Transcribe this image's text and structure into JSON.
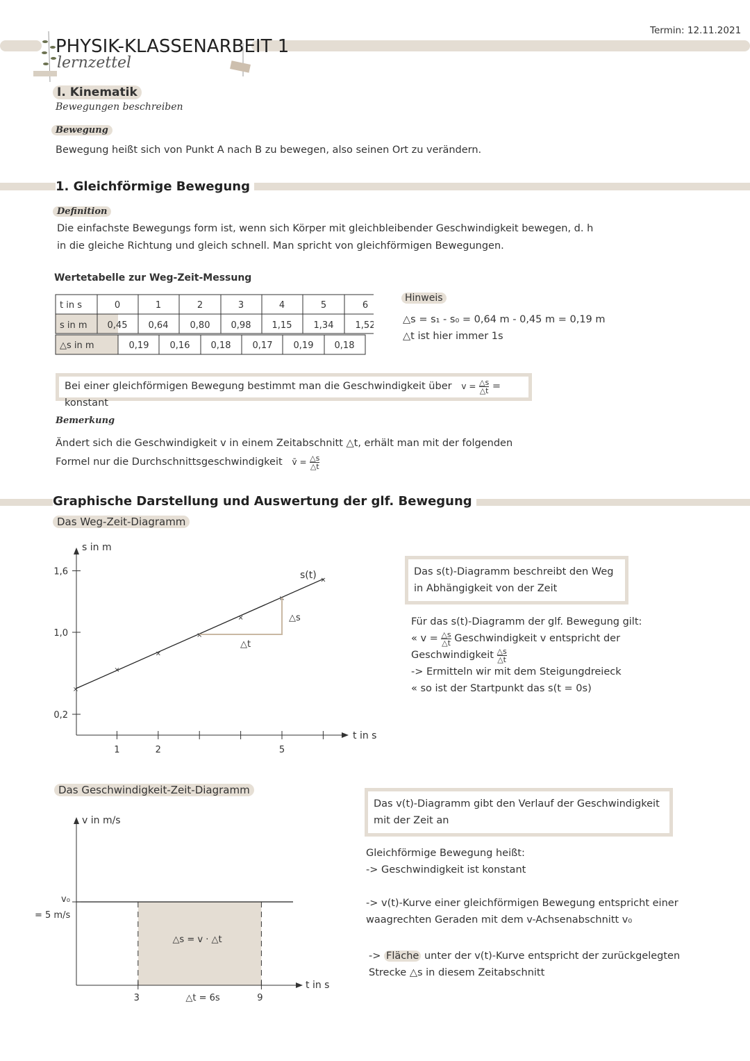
{
  "header": {
    "title": "PHYSIK-KLASSENARBEIT 1",
    "subtitle": "lernzettel",
    "date": "Termin: 12.11.2021"
  },
  "section1": {
    "title": "I. Kinematik",
    "subtitle": "Bewegungen beschreiben",
    "label": "Bewegung",
    "text": "Bewegung heißt sich von Punkt A nach B zu bewegen, also seinen Ort zu verändern."
  },
  "section2": {
    "title": "1. Gleichförmige Bewegung",
    "label": "Definition",
    "text1": "Die einfachste Bewegungs form ist, wenn sich Körper mit gleichbleibender Geschwindigkeit bewegen, d. h",
    "text2": "in die gleiche Richtung und gleich schnell. Man spricht von gleichförmigen Bewegungen."
  },
  "table": {
    "title": "Wertetabelle zur Weg-Zeit-Messung",
    "row_t": {
      "label": "t in s",
      "values": [
        "0",
        "1",
        "2",
        "3",
        "4",
        "5",
        "6"
      ]
    },
    "row_s": {
      "label": "s in m",
      "values": [
        "0,45",
        "0,64",
        "0,80",
        "0,98",
        "1,15",
        "1,34",
        "1,52"
      ]
    },
    "row_ds": {
      "label": "△s in m",
      "values": [
        "0,19",
        "0,16",
        "0,18",
        "0,17",
        "0,19",
        "0,18"
      ]
    }
  },
  "hint": {
    "title": "Hinweis",
    "line1": "△s = s₁ - s₀ = 0,64 m  - 0,45 m = 0,19 m",
    "line2": "△t ist hier immer 1s"
  },
  "formula_box": {
    "text": "Bei einer gleichförmigen Bewegung bestimmt man die Geschwindigkeit über",
    "v": "v =",
    "num": "△s",
    "den": "△t",
    "end": "= konstant"
  },
  "remark": {
    "label": "Bemerkung",
    "line1": "Ändert sich die Geschwindigkeit v in einem Zeitabschnitt  △t, erhält man mit der folgenden",
    "line2": "Formel nur die Durchschnittsgeschwindigkeit",
    "vbar": "v̄ =",
    "num": "△s",
    "den": "△t"
  },
  "graph_section": {
    "title": "Graphische Darstellung und Auswertung der glf. Bewegung",
    "sub1": "Das Weg-Zeit-Diagramm",
    "sub2": "Das Geschwindigkeit-Zeit-Diagramm"
  },
  "st_chart": {
    "ylabel": "s in m",
    "xlabel": "t in s",
    "curve_label": "s(t)",
    "yticks": [
      "1,6",
      "1,0",
      "0,2"
    ],
    "ytick_values": [
      1.6,
      1.0,
      0.2
    ],
    "xticks": [
      "1",
      "2",
      "5"
    ],
    "xtick_values": [
      1,
      2,
      5
    ],
    "points": [
      [
        0,
        0.45
      ],
      [
        1,
        0.64
      ],
      [
        2,
        0.8
      ],
      [
        3,
        0.98
      ],
      [
        4,
        1.15
      ],
      [
        5,
        1.34
      ],
      [
        6,
        1.52
      ]
    ],
    "ds_label": "△s",
    "dt_label": "△t",
    "triangle_color": "#c9b8a3"
  },
  "st_box": "Das s(t)-Diagramm beschreibt den Weg in Abhängigkeit von der Zeit",
  "st_notes": {
    "line1": "Für das s(t)-Diagramm der glf. Bewegung gilt:",
    "line2a": "« v =",
    "line2b": "Geschwindigkeit v entspricht der",
    "line3": "Geschwindigkeit",
    "line4": "-> Ermitteln wir mit dem Steigungdreieck",
    "line5": "« so ist der Startpunkt das s(t = 0s)",
    "num": "△s",
    "den": "△t"
  },
  "vt_chart": {
    "ylabel": "v in m/s",
    "xlabel": "t in s",
    "v0_label": "v₀",
    "v0_value": "= 5 m/s",
    "xticks": [
      "3",
      "9"
    ],
    "xtick_values": [
      3,
      9
    ],
    "area_label": "△s = v · △t",
    "dt_label": "△t = 6s",
    "area_color": "#e4ddd3"
  },
  "vt_box": "Das v(t)-Diagramm gibt den Verlauf der Geschwindigkeit mit der Zeit an",
  "vt_notes": {
    "line1": "Gleichförmige Bewegung heißt:",
    "line2": "-> Geschwindigkeit ist konstant",
    "line3": "-> v(t)-Kurve einer gleichförmigen Bewegung entspricht einer",
    "line4": "waagrechten Geraden mit dem v-Achsenabschnitt v₀",
    "line5a": "->",
    "line5b": "Fläche",
    "line5c": "unter der v(t)-Kurve entspricht der zurückgelegten",
    "line6": "Strecke △s in diesem Zeitabschnitt"
  }
}
